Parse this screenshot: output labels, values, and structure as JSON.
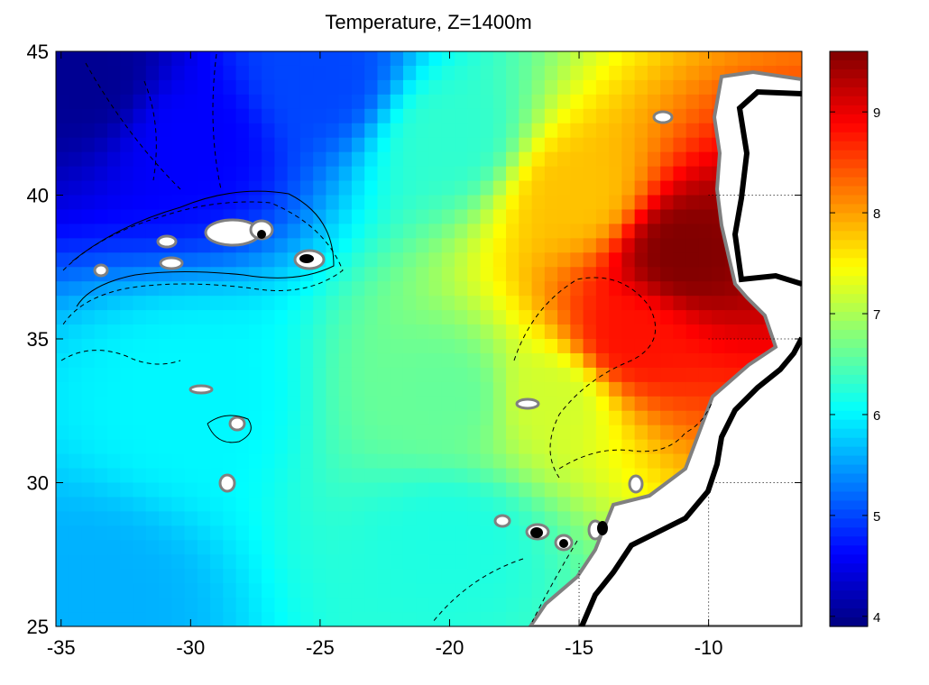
{
  "chart_data": {
    "type": "heatmap",
    "title": "Temperature, Z=1400m",
    "xlabel": "",
    "ylabel": "",
    "xlim": [
      -35.2,
      -6.4
    ],
    "ylim": [
      25,
      45
    ],
    "x_ticks": [
      -35,
      -30,
      -25,
      -20,
      -15,
      -10
    ],
    "x_tick_labels": [
      "-35",
      "-30",
      "-25",
      "-20",
      "-15",
      "-10"
    ],
    "y_ticks": [
      25,
      30,
      35,
      40,
      45
    ],
    "y_tick_labels": [
      "25",
      "30",
      "35",
      "40",
      "45"
    ],
    "colorbar": {
      "colormap": "jet",
      "range": [
        3.9,
        9.6
      ],
      "ticks": [
        4,
        5,
        6,
        7,
        8,
        9
      ],
      "tick_labels": [
        "4",
        "5",
        "6",
        "7",
        "8",
        "9"
      ]
    },
    "field_description_points": [
      {
        "lon": -34,
        "lat": 44,
        "temp": 4.0
      },
      {
        "lon": -30,
        "lat": 42,
        "temp": 4.6
      },
      {
        "lon": -25,
        "lat": 44,
        "temp": 5.0
      },
      {
        "lon": -20,
        "lat": 42,
        "temp": 6.3
      },
      {
        "lon": -15,
        "lat": 40,
        "temp": 7.8
      },
      {
        "lon": -11,
        "lat": 38,
        "temp": 9.6
      },
      {
        "lon": -13,
        "lat": 35,
        "temp": 8.8
      },
      {
        "lon": -16,
        "lat": 33,
        "temp": 7.2
      },
      {
        "lon": -20,
        "lat": 33,
        "temp": 6.6
      },
      {
        "lon": -30,
        "lat": 33,
        "temp": 6.0
      },
      {
        "lon": -34,
        "lat": 26,
        "temp": 5.6
      },
      {
        "lon": -20,
        "lat": 28,
        "temp": 6.2
      }
    ],
    "grid": "dotted partial",
    "contours": "bathymetry isolines (black dashed/solid), coastline (gray/black)"
  },
  "colors": {
    "land": "#ffffff",
    "coast_outer": "#000000",
    "coast_inner": "#808080"
  }
}
